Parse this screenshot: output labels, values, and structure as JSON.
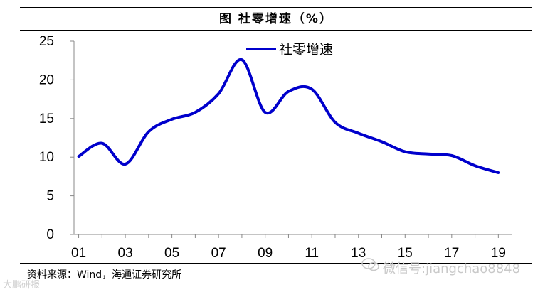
{
  "figure": {
    "title": "图  社零增速（%）",
    "source": "资料来源：Wind，海通证券研究所",
    "watermark": "微信号:jiangchao8848",
    "corner_mark": "大鹏研报"
  },
  "colors": {
    "series": "#0000CC",
    "axis": "#888888",
    "text": "#000000"
  },
  "chart_data": {
    "type": "line",
    "x": [
      2001,
      2002,
      2003,
      2004,
      2005,
      2006,
      2007,
      2008,
      2009,
      2010,
      2011,
      2012,
      2013,
      2014,
      2015,
      2016,
      2017,
      2018,
      2019
    ],
    "x_tick_values": [
      2001,
      2003,
      2005,
      2007,
      2009,
      2011,
      2013,
      2015,
      2017,
      2019
    ],
    "x_tick_labels": [
      "01",
      "03",
      "05",
      "07",
      "09",
      "11",
      "13",
      "15",
      "17",
      "19"
    ],
    "y_ticks": [
      0,
      5,
      10,
      15,
      20,
      25
    ],
    "ylim": [
      0,
      25
    ],
    "xlim": [
      2000.8,
      2019.6
    ],
    "series": [
      {
        "name": "社零增速",
        "values": [
          10.1,
          11.8,
          9.1,
          13.3,
          14.9,
          15.8,
          18.2,
          22.6,
          15.8,
          18.5,
          18.8,
          14.5,
          13.1,
          12.0,
          10.7,
          10.4,
          10.2,
          8.9,
          8.0
        ]
      }
    ],
    "legend_position": "top-center",
    "grid": false
  }
}
